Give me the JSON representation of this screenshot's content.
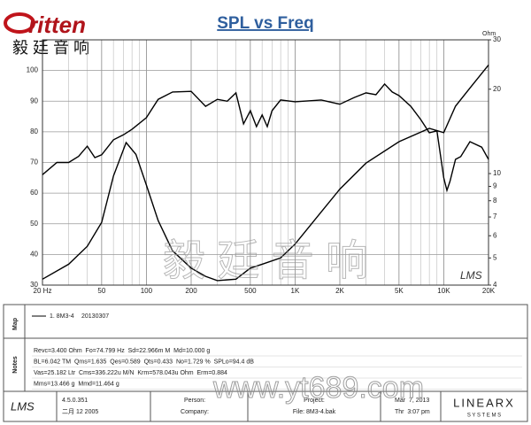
{
  "header": {
    "logo": "ritten",
    "logo_cn": "毅 廷 音 响"
  },
  "chart_data": {
    "type": "line",
    "title": "SPL vs Freq",
    "y2label": "Ohm",
    "annotation": "LMS",
    "x_scale": "log",
    "y2_scale": "log",
    "grid": true,
    "xlim": [
      20,
      20000
    ],
    "xticks": [
      {
        "value": 20,
        "label": "20 Hz"
      },
      50,
      100,
      200,
      500,
      {
        "value": 1000,
        "label": "1K"
      },
      {
        "value": 2000,
        "label": "2K"
      },
      {
        "value": 5000,
        "label": "5K"
      },
      {
        "value": 10000,
        "label": "10K"
      },
      {
        "value": 20000,
        "label": "20K"
      }
    ],
    "x_minor_ticks": [
      30,
      40,
      60,
      70,
      80,
      90,
      300,
      400,
      600,
      700,
      800,
      900,
      3000,
      4000,
      6000,
      7000,
      8000,
      9000
    ],
    "ylim": [
      30,
      110
    ],
    "yticks": [
      30,
      40,
      50,
      60,
      70,
      80,
      90,
      100
    ],
    "y2lim": [
      4,
      30
    ],
    "y2ticks": [
      4,
      5,
      6,
      7,
      8,
      9,
      10,
      20,
      30
    ],
    "series": [
      {
        "color": "#000000",
        "axis": "y",
        "x": [
          20,
          25,
          30,
          35,
          40,
          45,
          50,
          60,
          70,
          80,
          100,
          120,
          150,
          200,
          250,
          300,
          350,
          400,
          450,
          500,
          550,
          600,
          650,
          700,
          800,
          1000,
          1500,
          2000,
          2500,
          3000,
          3500,
          4000,
          4500,
          5000,
          6000,
          7000,
          8000,
          9000,
          10000,
          10500,
          11000,
          12000,
          13000,
          15000,
          18000,
          20000
        ],
        "values": [
          66,
          70,
          70,
          72,
          75.3,
          71.6,
          72.5,
          77.4,
          79,
          80.8,
          84.6,
          90.6,
          93,
          93.2,
          88.3,
          90.6,
          90,
          92.7,
          82.6,
          86.9,
          81.7,
          85.5,
          81.7,
          86.9,
          90.4,
          89.8,
          90.4,
          89,
          91.2,
          92.7,
          92.1,
          95.6,
          93,
          91.8,
          88.3,
          84,
          79.7,
          80.3,
          65,
          60.9,
          63.8,
          71,
          71.9,
          76.8,
          75,
          71
        ]
      },
      {
        "color": "#000000",
        "axis": "y2",
        "x": [
          20,
          30,
          40,
          50,
          60,
          73,
          85,
          100,
          120,
          150,
          200,
          250,
          300,
          400,
          500,
          600,
          800,
          1000,
          1500,
          2000,
          3000,
          5000,
          8000,
          10000,
          12000,
          15000,
          20000
        ],
        "values": [
          4.2,
          4.75,
          5.5,
          6.7,
          9.8,
          12.9,
          11.7,
          9.1,
          6.8,
          5.3,
          4.6,
          4.3,
          4.15,
          4.2,
          4.6,
          4.75,
          5.0,
          5.6,
          7.3,
          8.8,
          10.9,
          13.0,
          14.5,
          14.0,
          17.4,
          20.2,
          24.4
        ]
      }
    ]
  },
  "map": {
    "label": "Map",
    "legend": "1. 8M3-4",
    "date": "20130307"
  },
  "notes": {
    "label": "Notes",
    "lines": [
      "Revc=3.400 Ohm  Fo=74.799 Hz  Sd=22.966m M  Md=10.000 g",
      "BL=6.042 TM  Qms=1.635  Qes=0.589  Qts=0.433  No=1.729 %  SPLo=94.4 dB",
      "Vas=25.182 Ltr  Cms=336.222u M/N  Krm=578.043u Ohm  Erm=0.884",
      "Mms=13.466 g  Mmd=11.464 g"
    ]
  },
  "footer": {
    "logo": "LMS",
    "version": "4.5.0.351",
    "build": "二月 12 2005",
    "person": "Person:",
    "company": "Company:",
    "project": "Project:",
    "file": "File: 8M3-4.bak",
    "date": "Mar  7, 2013",
    "time": "Thr  3:07 pm",
    "brand": "LINEARX",
    "brand_sub": "S Y S T E M S"
  },
  "watermark": {
    "cn": "毅 廷 音 响",
    "url": "www.yt689.com"
  }
}
